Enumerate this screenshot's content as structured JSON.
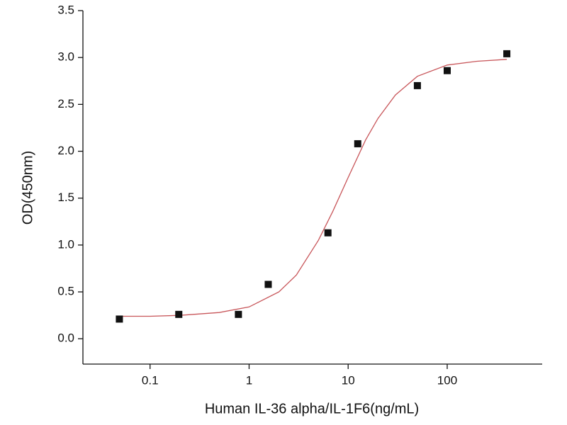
{
  "chart_data": {
    "type": "scatter",
    "xlabel": "Human IL-36 alpha/IL-1F6(ng/mL)",
    "ylabel": "OD(450nm)",
    "xscale": "log",
    "xlim": [
      0.021,
      910
    ],
    "ylim": [
      -0.27,
      3.5
    ],
    "xticks": [
      0.1,
      1,
      10,
      100
    ],
    "yticks": [
      {
        "value": 0,
        "label": "0.0"
      },
      0.5,
      {
        "value": 1,
        "label": "1.0"
      },
      1.5,
      {
        "value": 2,
        "label": "2.0"
      },
      2.5,
      {
        "value": 3,
        "label": "3.0"
      },
      3.5
    ],
    "series": [
      {
        "type": "scatter",
        "color": "#111111",
        "x": [
          0.049,
          0.195,
          0.78,
          1.56,
          6.25,
          12.5,
          50,
          100,
          400
        ],
        "values": [
          0.21,
          0.26,
          0.26,
          0.58,
          1.13,
          2.08,
          2.7,
          2.86,
          3.04
        ]
      },
      {
        "type": "line",
        "color": "#c8565a",
        "x": [
          0.05,
          0.1,
          0.2,
          0.5,
          1,
          2,
          3,
          5,
          7,
          10,
          15,
          20,
          30,
          50,
          100,
          200,
          400
        ],
        "values": [
          0.24,
          0.24,
          0.25,
          0.28,
          0.34,
          0.5,
          0.68,
          1.05,
          1.36,
          1.72,
          2.12,
          2.35,
          2.6,
          2.8,
          2.92,
          2.96,
          2.98
        ]
      }
    ]
  }
}
